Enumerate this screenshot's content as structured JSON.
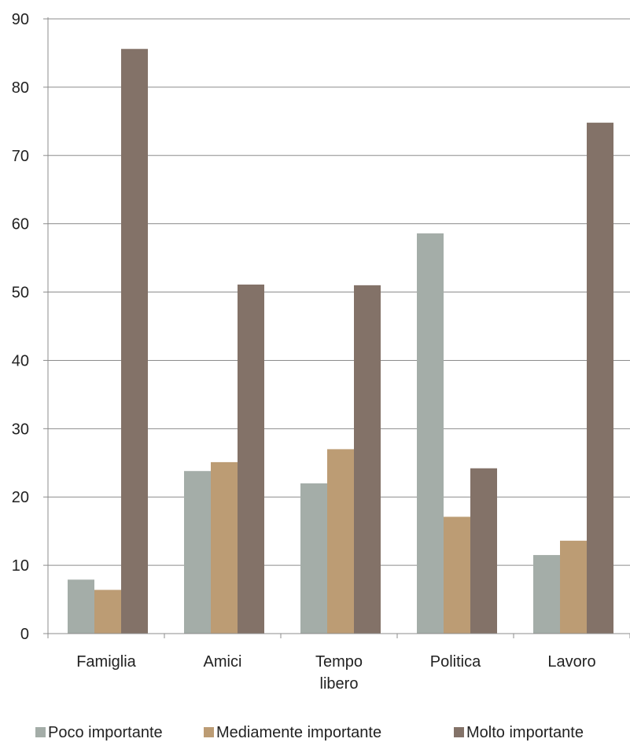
{
  "chart_data": {
    "type": "bar",
    "title": "",
    "xlabel": "",
    "ylabel": "",
    "ylim": [
      0,
      90
    ],
    "yticks": [
      "0",
      "10",
      "20",
      "30",
      "40",
      "50",
      "60",
      "70",
      "80",
      "90"
    ],
    "grid": true,
    "legend_position": "bottom",
    "categories": [
      [
        "Famiglia"
      ],
      [
        "Amici"
      ],
      [
        "Tempo",
        "libero"
      ],
      [
        "Politica"
      ],
      [
        "Lavoro"
      ]
    ],
    "series": [
      {
        "name": "Poco importante",
        "color": "#a4ada8",
        "values": [
          7.9,
          23.8,
          22.0,
          58.6,
          11.5
        ]
      },
      {
        "name": "Mediamente importante",
        "color": "#bc9c74",
        "values": [
          6.4,
          25.1,
          27.0,
          17.1,
          13.6
        ]
      },
      {
        "name": "Molto importante",
        "color": "#837268",
        "values": [
          85.6,
          51.1,
          51.0,
          24.2,
          74.8
        ]
      }
    ]
  }
}
